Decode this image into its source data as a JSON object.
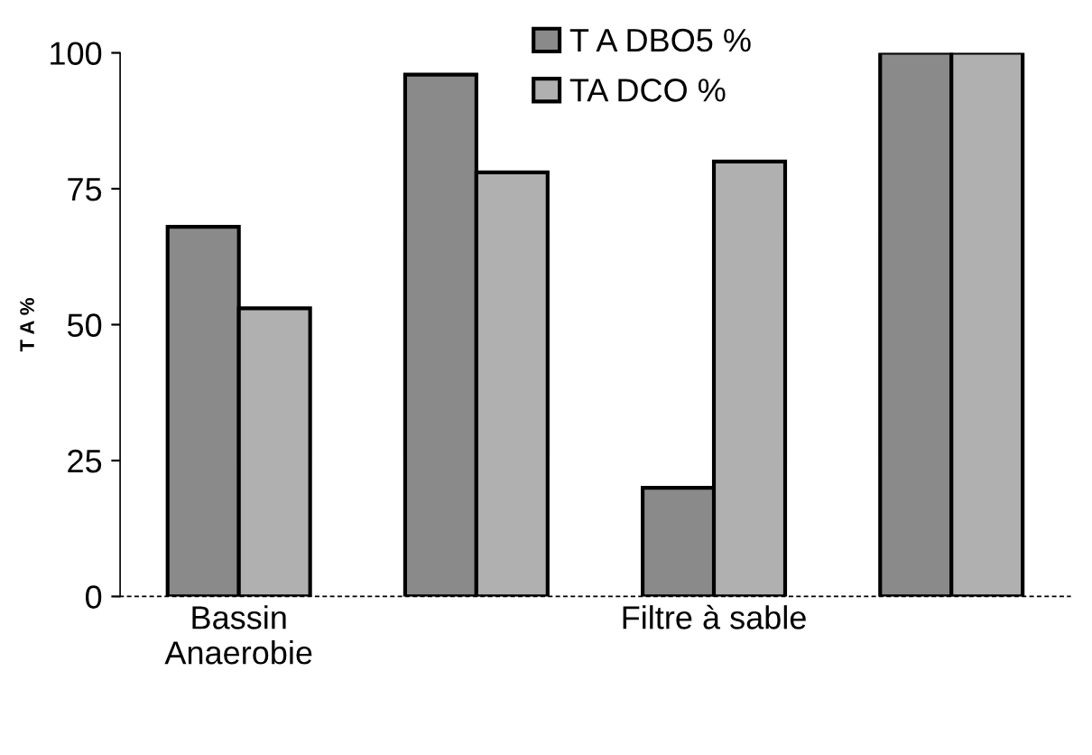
{
  "chart_data": {
    "type": "bar",
    "ylabel": "T A %",
    "categories": [
      "Bassin\nAnaerobie",
      null,
      "Filtre à sable",
      null
    ],
    "series": [
      {
        "name": "T A DBO5 %",
        "color": "#8a8a8a",
        "values": [
          68,
          96,
          20,
          100
        ]
      },
      {
        "name": "TA DCO %",
        "color": "#b0b0b0",
        "values": [
          53,
          78,
          80,
          100
        ]
      }
    ],
    "ylim": [
      0,
      100
    ],
    "yticks": [
      0,
      25,
      50,
      75,
      100
    ],
    "grid": false,
    "legend": "top"
  }
}
